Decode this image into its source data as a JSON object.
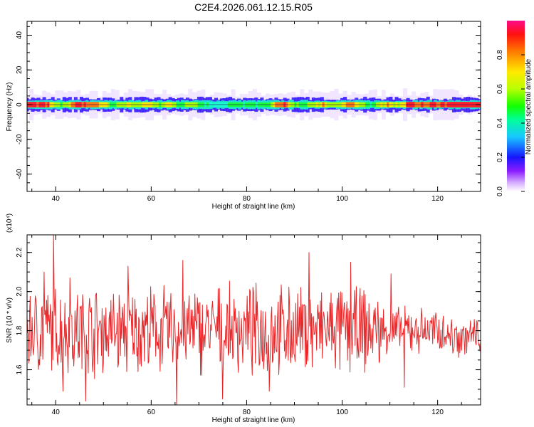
{
  "title": "C2E4.2026.061.12.15.R05",
  "colors": {
    "snr_line": "#e8282a",
    "axis": "#000000",
    "background": "#ffffff"
  },
  "chart_data": [
    {
      "type": "heatmap",
      "name": "spectrogram",
      "title": "C2E4.2026.061.12.15.R05",
      "xlabel": "Height of straight line (km)",
      "ylabel": "Frequency (Hz)",
      "xlim": [
        34,
        129
      ],
      "ylim": [
        -50,
        48
      ],
      "xticks": [
        40,
        60,
        80,
        100,
        120
      ],
      "yticks": [
        -40,
        -20,
        0,
        20,
        40
      ],
      "band_center_hz": 0,
      "band_halfwidth_hz": 2,
      "ridge_amplitude": [
        [
          34,
          0.9
        ],
        [
          36,
          0.95
        ],
        [
          38,
          1.0
        ],
        [
          40,
          0.6
        ],
        [
          42,
          0.7
        ],
        [
          44,
          0.9
        ],
        [
          46,
          0.95
        ],
        [
          48,
          0.9
        ],
        [
          50,
          0.8
        ],
        [
          52,
          0.55
        ],
        [
          54,
          0.7
        ],
        [
          56,
          0.75
        ],
        [
          58,
          0.7
        ],
        [
          60,
          0.85
        ],
        [
          62,
          0.6
        ],
        [
          64,
          0.85
        ],
        [
          66,
          0.55
        ],
        [
          68,
          0.7
        ],
        [
          70,
          0.6
        ],
        [
          72,
          0.5
        ],
        [
          74,
          0.45
        ],
        [
          76,
          0.5
        ],
        [
          78,
          0.55
        ],
        [
          80,
          0.5
        ],
        [
          82,
          0.55
        ],
        [
          84,
          0.5
        ],
        [
          86,
          0.8
        ],
        [
          88,
          0.95
        ],
        [
          90,
          0.6
        ],
        [
          92,
          0.55
        ],
        [
          94,
          0.7
        ],
        [
          96,
          0.85
        ],
        [
          98,
          0.6
        ],
        [
          100,
          0.75
        ],
        [
          102,
          0.9
        ],
        [
          104,
          0.65
        ],
        [
          106,
          0.5
        ],
        [
          108,
          0.75
        ],
        [
          110,
          0.85
        ],
        [
          112,
          0.7
        ],
        [
          114,
          0.95
        ],
        [
          116,
          0.95
        ],
        [
          118,
          0.9
        ],
        [
          120,
          0.95
        ],
        [
          122,
          1.0
        ],
        [
          124,
          1.0
        ],
        [
          126,
          1.0
        ],
        [
          128,
          1.0
        ]
      ]
    },
    {
      "type": "colorbar",
      "name": "amplitude-colorbar",
      "label": "Normalized spectral amplitude",
      "range": [
        0,
        1
      ],
      "ticks": [
        "0.0",
        "0.2",
        "0.4",
        "0.6",
        "0.8"
      ],
      "tick_values": [
        0.0,
        0.2,
        0.4,
        0.6,
        0.8
      ]
    },
    {
      "type": "line",
      "name": "snr-trace",
      "xlabel": "Height of straight line (km)",
      "ylabel": "SNR (10 * v/v)",
      "scale_label": "(x10⁴)",
      "xlim": [
        34,
        129
      ],
      "ylim": [
        1.42,
        2.29
      ],
      "xticks": [
        40,
        60,
        80,
        100,
        120
      ],
      "yticks": [
        1.6,
        1.8,
        2.0,
        2.2
      ],
      "ytick_labels": [
        "1.6",
        "1.8",
        "2.0",
        "2.2"
      ],
      "mean": 1.8,
      "spikes": [
        [
          39.5,
          2.29
        ],
        [
          37.6,
          2.1
        ],
        [
          41.5,
          1.49
        ],
        [
          43.0,
          2.07
        ],
        [
          46.3,
          1.44
        ],
        [
          55.2,
          2.13
        ],
        [
          65.3,
          1.42
        ],
        [
          66.6,
          2.16
        ],
        [
          75.0,
          1.45
        ],
        [
          84.7,
          1.49
        ],
        [
          93.0,
          2.2
        ],
        [
          101.8,
          2.15
        ],
        [
          110.2,
          2.09
        ],
        [
          113.0,
          1.51
        ]
      ]
    }
  ]
}
